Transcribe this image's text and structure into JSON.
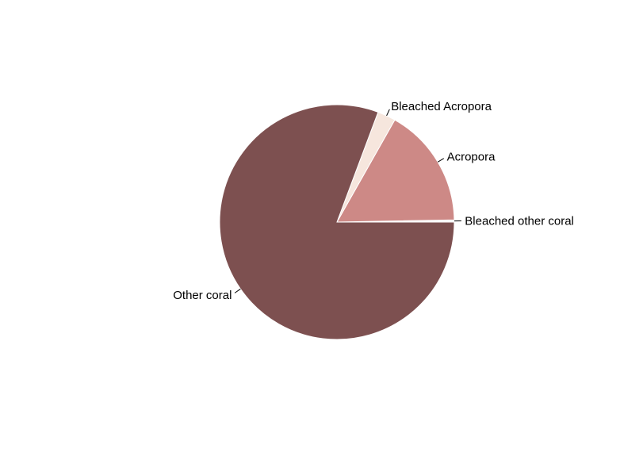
{
  "chart_data": {
    "type": "pie",
    "title": "",
    "slices": [
      {
        "label": "Bleached other coral",
        "value": 0.3,
        "color": "#f5f5f5"
      },
      {
        "label": "Acropora",
        "value": 16.5,
        "color": "#cd8986"
      },
      {
        "label": "Bleached Acropora",
        "value": 2.5,
        "color": "#f6e6dd"
      },
      {
        "label": "Other coral",
        "value": 80.7,
        "color": "#7d5050"
      }
    ],
    "start_direction": "east",
    "direction": "counter-clockwise",
    "legend": "none"
  }
}
